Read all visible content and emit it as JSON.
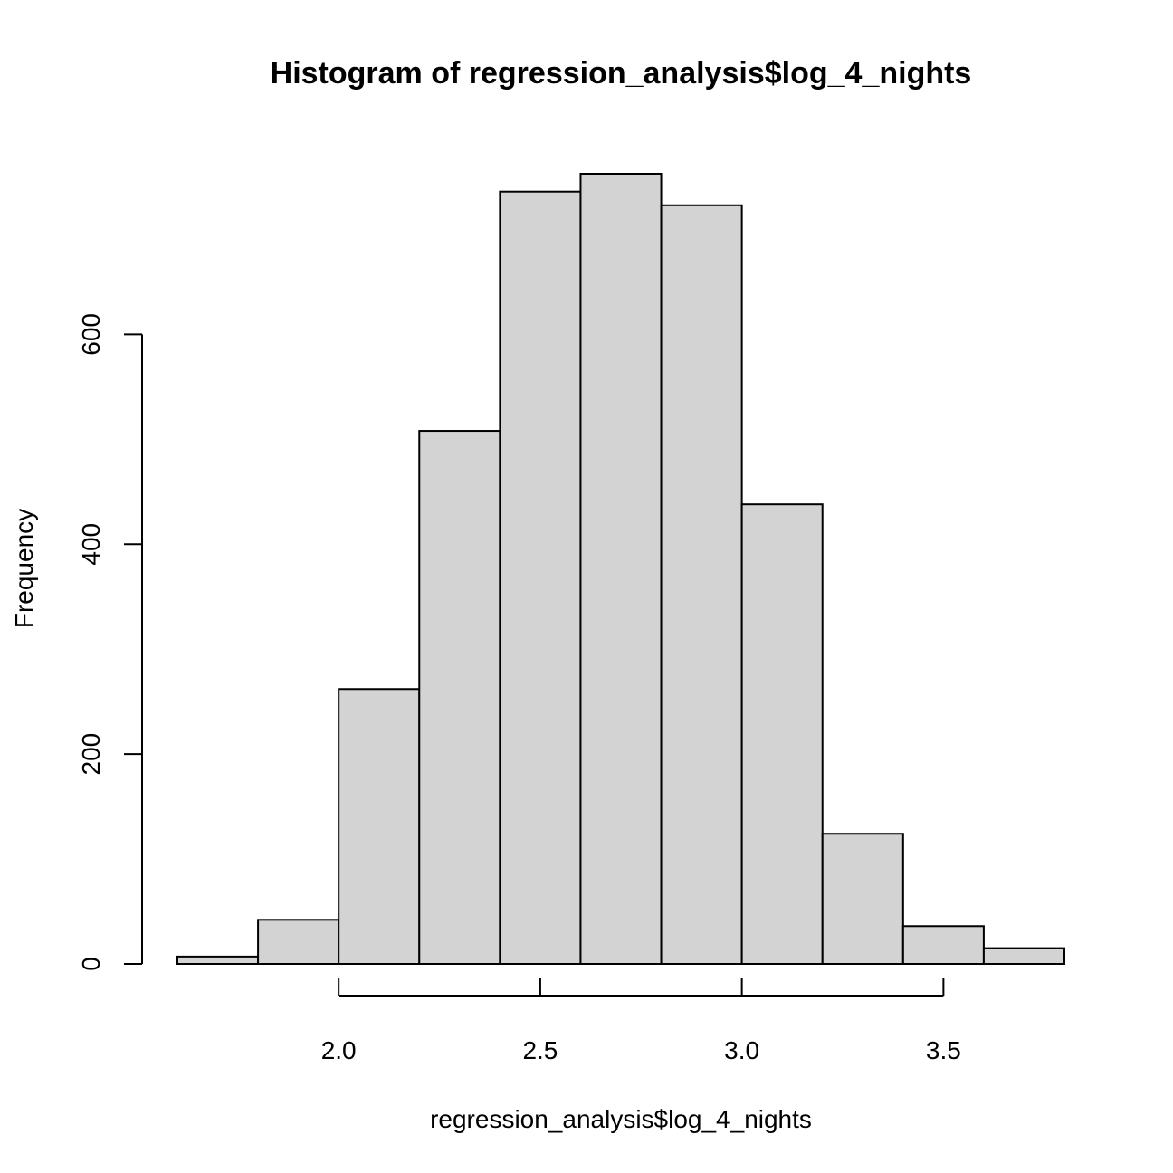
{
  "chart_data": {
    "type": "bar",
    "title": "Histogram of regression_analysis$log_4_nights",
    "xlabel": "regression_analysis$log_4_nights",
    "ylabel": "Frequency",
    "bin_edges": [
      1.6,
      1.8,
      2.0,
      2.2,
      2.4,
      2.6,
      2.8,
      3.0,
      3.2,
      3.4,
      3.6,
      3.8
    ],
    "values": [
      7,
      42,
      262,
      508,
      736,
      753,
      723,
      438,
      124,
      36,
      15
    ],
    "xlim": [
      1.6,
      3.8
    ],
    "ylim": [
      0,
      753
    ],
    "x_ticks": [
      2.0,
      2.5,
      3.0,
      3.5
    ],
    "x_tick_labels": [
      "2.0",
      "2.5",
      "3.0",
      "3.5"
    ],
    "y_ticks": [
      0,
      200,
      400,
      600
    ],
    "y_tick_labels": [
      "0",
      "200",
      "400",
      "600"
    ],
    "bar_fill": "#d3d3d3",
    "bar_stroke": "#000000",
    "grid": false,
    "legend": "none"
  }
}
